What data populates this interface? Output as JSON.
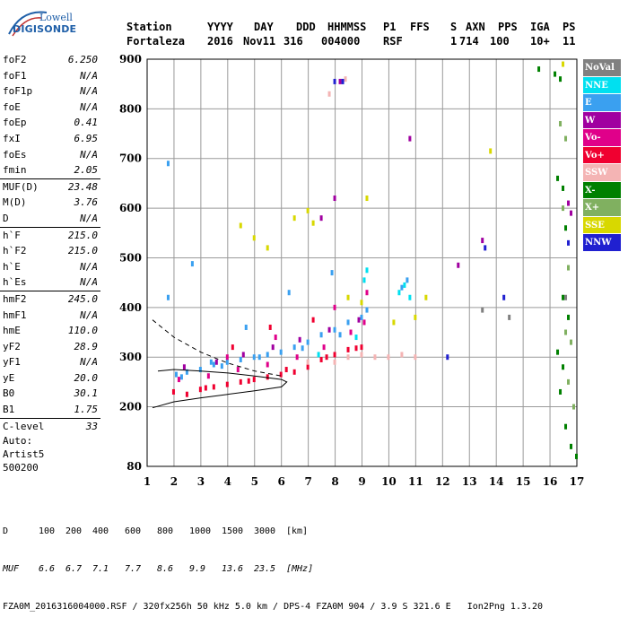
{
  "logo": {
    "line1": "Lowell",
    "line2": "DIGISONDE"
  },
  "header": {
    "labels": [
      "Station",
      "YYYY",
      "DAY",
      "DDD",
      "HHMMSS",
      "P1",
      "FFS",
      "S",
      "AXN",
      "PPS",
      "IGA",
      "PS"
    ],
    "values": [
      "Fortaleza",
      "2016",
      "Nov11",
      "316",
      "004000",
      "RSF",
      "1",
      "714",
      "100",
      "10+",
      "11"
    ]
  },
  "params_groups": [
    [
      {
        "k": "foF2",
        "v": "6.250"
      },
      {
        "k": "foF1",
        "v": "N/A"
      },
      {
        "k": "foF1p",
        "v": "N/A"
      },
      {
        "k": "foE",
        "v": "N/A"
      },
      {
        "k": "foEp",
        "v": "0.41"
      },
      {
        "k": "fxI",
        "v": "6.95"
      },
      {
        "k": "foEs",
        "v": "N/A"
      },
      {
        "k": "fmin",
        "v": "2.05"
      }
    ],
    [
      {
        "k": "MUF(D)",
        "v": "23.48"
      },
      {
        "k": "M(D)",
        "v": "3.76"
      },
      {
        "k": "D",
        "v": "N/A"
      }
    ],
    [
      {
        "k": "h`F",
        "v": "215.0"
      },
      {
        "k": "h`F2",
        "v": "215.0"
      },
      {
        "k": "h`E",
        "v": "N/A"
      },
      {
        "k": "h`Es",
        "v": "N/A"
      }
    ],
    [
      {
        "k": "hmF2",
        "v": "245.0"
      },
      {
        "k": "hmF1",
        "v": "N/A"
      },
      {
        "k": "hmE",
        "v": "110.0"
      },
      {
        "k": "yF2",
        "v": "28.9"
      },
      {
        "k": "yF1",
        "v": "N/A"
      },
      {
        "k": "yE",
        "v": "20.0"
      },
      {
        "k": "B0",
        "v": "30.1"
      },
      {
        "k": "B1",
        "v": "1.75"
      }
    ],
    [
      {
        "k": "C-level",
        "v": "33"
      }
    ]
  ],
  "auto": {
    "line1": "Auto:",
    "line2": "Artist5",
    "line3": "500200"
  },
  "legend": [
    {
      "name": "NoVal",
      "color": "#808080",
      "text": "#ffffff"
    },
    {
      "name": "NNE",
      "color": "#00e0f0",
      "text": "#ffffff"
    },
    {
      "name": "E",
      "color": "#3aa0f0",
      "text": "#ffffff"
    },
    {
      "name": "W",
      "color": "#a000a0",
      "text": "#ffffff"
    },
    {
      "name": "Vo-",
      "color": "#e0008a",
      "text": "#ffffff"
    },
    {
      "name": "Vo+",
      "color": "#f00030",
      "text": "#ffffff"
    },
    {
      "name": "SSW",
      "color": "#f4b4b4",
      "text": "#ffffff"
    },
    {
      "name": "X-",
      "color": "#008000",
      "text": "#ffffff"
    },
    {
      "name": "X+",
      "color": "#80b060",
      "text": "#ffffff"
    },
    {
      "name": "SSE",
      "color": "#d8d800",
      "text": "#ffffff"
    },
    {
      "name": "NNW",
      "color": "#2020d0",
      "text": "#ffffff"
    }
  ],
  "footer": {
    "d_label": "D",
    "d_values": [
      "100",
      "200",
      "400",
      "600",
      "800",
      "1000",
      "1500",
      "3000",
      "[km]"
    ],
    "muf_label": "MUF",
    "muf_values": [
      "6.6",
      "6.7",
      "7.1",
      "7.7",
      "8.6",
      "9.9",
      "13.6",
      "23.5",
      "[MHz]"
    ],
    "file_line": "FZA0M_2016316004000.RSF / 320fx256h 50 kHz 5.0 km / DPS-4 FZA0M 904 / 3.9 S 321.6 E   Ion2Png 1.3.20"
  },
  "chart_data": {
    "type": "scatter",
    "title": "",
    "xlabel": "",
    "ylabel": "",
    "xlim": [
      1,
      17
    ],
    "ylim": [
      80,
      900
    ],
    "xticks": [
      1,
      2,
      3,
      4,
      5,
      6,
      7,
      8,
      9,
      10,
      11,
      12,
      13,
      14,
      15,
      16,
      17
    ],
    "yticks": [
      80,
      200,
      300,
      400,
      500,
      600,
      700,
      800,
      900
    ],
    "grid": true,
    "legend_position": "right",
    "series": [
      {
        "name": "E",
        "color": "#3aa0f0",
        "points": [
          [
            2.1,
            265
          ],
          [
            2.5,
            270
          ],
          [
            3.0,
            275
          ],
          [
            3.5,
            285
          ],
          [
            4.0,
            290
          ],
          [
            4.5,
            295
          ],
          [
            5.0,
            300
          ],
          [
            5.5,
            305
          ],
          [
            6.0,
            310
          ],
          [
            6.5,
            320
          ],
          [
            7.0,
            330
          ],
          [
            7.5,
            345
          ],
          [
            8.0,
            355
          ],
          [
            8.5,
            370
          ],
          [
            9.0,
            380
          ],
          [
            2.3,
            260
          ],
          [
            3.8,
            282
          ],
          [
            5.2,
            300
          ],
          [
            6.8,
            318
          ],
          [
            8.2,
            345
          ],
          [
            9.2,
            395
          ],
          [
            10.5,
            440
          ],
          [
            1.8,
            420
          ],
          [
            1.8,
            690
          ],
          [
            2.7,
            488
          ],
          [
            3.4,
            290
          ],
          [
            4.7,
            360
          ],
          [
            6.3,
            430
          ],
          [
            7.9,
            470
          ],
          [
            10.7,
            455
          ]
        ]
      },
      {
        "name": "NNE",
        "color": "#00e0f0",
        "points": [
          [
            9.1,
            455
          ],
          [
            9.2,
            475
          ],
          [
            10.4,
            430
          ],
          [
            10.6,
            445
          ],
          [
            10.8,
            420
          ],
          [
            8.8,
            340
          ],
          [
            7.4,
            305
          ]
        ]
      },
      {
        "name": "Vo+",
        "color": "#f00030",
        "points": [
          [
            2.0,
            230
          ],
          [
            2.5,
            225
          ],
          [
            3.0,
            235
          ],
          [
            3.5,
            240
          ],
          [
            4.0,
            245
          ],
          [
            4.5,
            250
          ],
          [
            5.0,
            255
          ],
          [
            5.5,
            260
          ],
          [
            6.0,
            265
          ],
          [
            6.5,
            270
          ],
          [
            7.0,
            280
          ],
          [
            7.5,
            295
          ],
          [
            8.0,
            305
          ],
          [
            8.5,
            315
          ],
          [
            9.0,
            320
          ],
          [
            3.2,
            238
          ],
          [
            4.8,
            252
          ],
          [
            6.2,
            275
          ],
          [
            7.7,
            300
          ],
          [
            8.8,
            318
          ],
          [
            4.2,
            320
          ],
          [
            5.6,
            360
          ],
          [
            7.2,
            375
          ]
        ]
      },
      {
        "name": "Vo-",
        "color": "#e0008a",
        "points": [
          [
            2.2,
            255
          ],
          [
            3.3,
            262
          ],
          [
            4.4,
            275
          ],
          [
            5.5,
            285
          ],
          [
            6.6,
            300
          ],
          [
            7.6,
            320
          ],
          [
            8.6,
            350
          ],
          [
            9.1,
            370
          ],
          [
            4.0,
            300
          ],
          [
            5.8,
            340
          ],
          [
            8.0,
            400
          ],
          [
            9.2,
            430
          ]
        ]
      },
      {
        "name": "W",
        "color": "#a000a0",
        "points": [
          [
            2.4,
            280
          ],
          [
            3.6,
            290
          ],
          [
            4.6,
            305
          ],
          [
            5.7,
            320
          ],
          [
            6.7,
            335
          ],
          [
            7.8,
            355
          ],
          [
            8.9,
            375
          ],
          [
            7.5,
            580
          ],
          [
            8.0,
            620
          ],
          [
            8.2,
            855
          ],
          [
            10.8,
            740
          ],
          [
            12.6,
            485
          ],
          [
            13.5,
            535
          ],
          [
            16.7,
            610
          ],
          [
            16.8,
            590
          ]
        ]
      },
      {
        "name": "SSW",
        "color": "#f4b4b4",
        "points": [
          [
            7.0,
            290
          ],
          [
            8.0,
            290
          ],
          [
            8.5,
            300
          ],
          [
            9.0,
            305
          ],
          [
            9.5,
            300
          ],
          [
            10.0,
            300
          ],
          [
            10.5,
            305
          ],
          [
            11.0,
            300
          ],
          [
            7.8,
            830
          ],
          [
            8.4,
            860
          ]
        ]
      },
      {
        "name": "SSE",
        "color": "#d8d800",
        "points": [
          [
            4.5,
            565
          ],
          [
            5.0,
            540
          ],
          [
            5.5,
            520
          ],
          [
            6.5,
            580
          ],
          [
            7.0,
            595
          ],
          [
            7.2,
            570
          ],
          [
            9.2,
            620
          ],
          [
            10.2,
            370
          ],
          [
            11.0,
            380
          ],
          [
            11.4,
            420
          ],
          [
            13.8,
            715
          ],
          [
            16.5,
            890
          ],
          [
            9.0,
            410
          ],
          [
            8.5,
            420
          ]
        ]
      },
      {
        "name": "NNW",
        "color": "#2020d0",
        "points": [
          [
            8.0,
            855
          ],
          [
            8.3,
            855
          ],
          [
            12.2,
            300
          ],
          [
            13.6,
            520
          ],
          [
            14.3,
            420
          ],
          [
            16.7,
            530
          ]
        ]
      },
      {
        "name": "X-",
        "color": "#008000",
        "points": [
          [
            15.6,
            880
          ],
          [
            16.2,
            870
          ],
          [
            16.4,
            860
          ],
          [
            16.3,
            660
          ],
          [
            16.5,
            640
          ],
          [
            16.6,
            560
          ],
          [
            16.5,
            420
          ],
          [
            16.7,
            380
          ],
          [
            16.3,
            310
          ],
          [
            16.5,
            280
          ],
          [
            16.4,
            230
          ],
          [
            16.6,
            160
          ],
          [
            16.8,
            120
          ],
          [
            17.0,
            100
          ]
        ]
      },
      {
        "name": "X+",
        "color": "#80b060",
        "points": [
          [
            16.4,
            770
          ],
          [
            16.6,
            740
          ],
          [
            16.5,
            600
          ],
          [
            16.7,
            480
          ],
          [
            16.6,
            350
          ],
          [
            16.8,
            330
          ],
          [
            16.7,
            250
          ],
          [
            16.9,
            200
          ]
        ]
      },
      {
        "name": "NoVal",
        "color": "#808080",
        "points": [
          [
            13.5,
            395
          ],
          [
            14.5,
            380
          ],
          [
            16.6,
            420
          ]
        ]
      }
    ],
    "fit_lines": [
      {
        "style": "solid",
        "points": [
          [
            1.2,
            198
          ],
          [
            2.0,
            210
          ],
          [
            3.0,
            218
          ],
          [
            4.0,
            225
          ],
          [
            5.0,
            232
          ],
          [
            6.0,
            240
          ],
          [
            6.2,
            250
          ],
          [
            6.0,
            255
          ],
          [
            5.0,
            262
          ],
          [
            4.0,
            268
          ],
          [
            3.0,
            272
          ],
          [
            2.0,
            275
          ],
          [
            1.4,
            272
          ]
        ]
      },
      {
        "style": "dashed",
        "points": [
          [
            1.2,
            375
          ],
          [
            2.0,
            340
          ],
          [
            3.0,
            310
          ],
          [
            4.0,
            288
          ],
          [
            5.0,
            272
          ],
          [
            6.0,
            262
          ]
        ]
      }
    ]
  }
}
